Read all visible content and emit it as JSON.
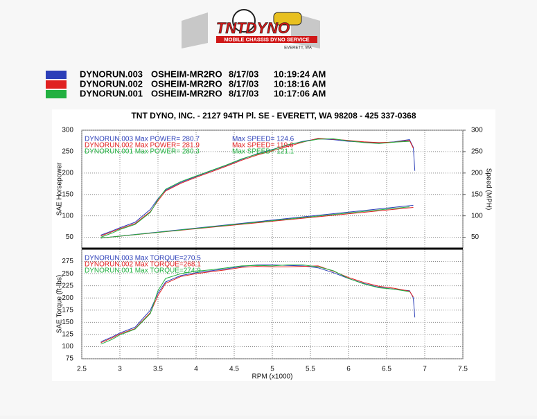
{
  "header": {
    "logo": {
      "brand": "TNTDYNO",
      "tagline": "MOBILE CHASSIS DYNO SERVICE",
      "place": "EVERETT, WA"
    },
    "legend": [
      {
        "run": "DYNORUN.003",
        "vehicle": "OSHEIM-MR2RO",
        "date": "8/17/03",
        "time": "10:19:24 AM",
        "color": "#2c3fb8"
      },
      {
        "run": "DYNORUN.002",
        "vehicle": "OSHEIM-MR2RO",
        "date": "8/17/03",
        "time": "10:18:16 AM",
        "color": "#e02020"
      },
      {
        "run": "DYNORUN.001",
        "vehicle": "OSHEIM-MR2RO",
        "date": "8/17/03",
        "time": "10:17:06 AM",
        "color": "#22b040"
      }
    ],
    "title": "TNT DYNO, INC. - 2127 94TH Pl. SE - EVERETT, WA 98208 - 425 337-0368"
  },
  "chart_data": [
    {
      "type": "line",
      "ylabel": "SAE Horsepower",
      "y2label": "Speed (MPH)",
      "xlim": [
        2.5,
        7.5
      ],
      "ylim": [
        25,
        300
      ],
      "yticks": [
        50,
        100,
        150,
        200,
        250,
        300
      ],
      "y2lim": [
        25,
        300
      ],
      "y2ticks": [
        50,
        100,
        150,
        200,
        250,
        300
      ],
      "grid": true,
      "series": [
        {
          "label": "DYNORUN.003 Max POWER= 280.7",
          "color": "#2c3fb8",
          "x": [
            2.75,
            2.9,
            3.0,
            3.2,
            3.4,
            3.5,
            3.6,
            3.8,
            4.0,
            4.2,
            4.4,
            4.6,
            4.8,
            5.0,
            5.2,
            5.4,
            5.6,
            5.8,
            6.0,
            6.2,
            6.4,
            6.6,
            6.8,
            6.85,
            6.87
          ],
          "values": [
            55,
            65,
            72,
            85,
            115,
            140,
            160,
            178,
            192,
            205,
            218,
            232,
            245,
            255,
            265,
            274,
            280,
            278,
            274,
            272,
            270,
            273,
            278,
            260,
            205
          ]
        },
        {
          "label": "DYNORUN.002 Max POWER= 281.9",
          "color": "#e02020",
          "x": [
            2.75,
            2.9,
            3.0,
            3.2,
            3.4,
            3.5,
            3.6,
            3.8,
            4.0,
            4.2,
            4.4,
            4.6,
            4.8,
            5.0,
            5.2,
            5.4,
            5.6,
            5.8,
            6.0,
            6.2,
            6.4,
            6.6,
            6.8,
            6.85
          ],
          "values": [
            53,
            63,
            70,
            82,
            110,
            135,
            158,
            176,
            190,
            203,
            216,
            230,
            242,
            252,
            262,
            272,
            281,
            279,
            276,
            273,
            271,
            272,
            276,
            258
          ]
        },
        {
          "label": "DYNORUN.001 Max POWER= 280.3",
          "color": "#22b040",
          "x": [
            2.75,
            2.9,
            3.0,
            3.2,
            3.4,
            3.5,
            3.6,
            3.8,
            4.0,
            4.2,
            4.4,
            4.6,
            4.8,
            5.0,
            5.2,
            5.4,
            5.6,
            5.8,
            6.0,
            6.2,
            6.4,
            6.6,
            6.8
          ],
          "values": [
            50,
            60,
            68,
            80,
            108,
            138,
            162,
            180,
            193,
            206,
            219,
            233,
            244,
            254,
            266,
            273,
            279,
            280,
            275,
            271,
            269,
            272,
            274
          ]
        },
        {
          "label": "Max SPEED= 124.6",
          "color": "#2c3fb8",
          "axis": "y2",
          "x": [
            2.75,
            6.85
          ],
          "values": [
            48,
            124.6
          ]
        },
        {
          "label": "Max SPEED= 119.6",
          "color": "#e02020",
          "axis": "y2",
          "x": [
            2.75,
            6.85
          ],
          "values": [
            48,
            119.6
          ]
        },
        {
          "label": "Max SPEED= 121.1",
          "color": "#22b040",
          "axis": "y2",
          "x": [
            2.75,
            6.8
          ],
          "values": [
            48,
            121.1
          ]
        }
      ]
    },
    {
      "type": "line",
      "ylabel": "SAE Torque (ft-lbs)",
      "xlabel": "RPM (x1000)",
      "xlim": [
        2.5,
        7.5
      ],
      "xticks": [
        2.5,
        3.0,
        3.5,
        4.0,
        4.5,
        5.0,
        5.5,
        6.0,
        6.5,
        7.0,
        7.5
      ],
      "ylim": [
        75,
        300
      ],
      "yticks": [
        75,
        100,
        125,
        150,
        175,
        200,
        225,
        250,
        275
      ],
      "grid": true,
      "series": [
        {
          "label": "DYNORUN.003 Max TORQUE=270.5",
          "color": "#2c3fb8",
          "x": [
            2.75,
            2.9,
            3.0,
            3.2,
            3.4,
            3.5,
            3.6,
            3.8,
            4.0,
            4.2,
            4.4,
            4.6,
            4.8,
            5.0,
            5.2,
            5.4,
            5.6,
            5.8,
            6.0,
            6.2,
            6.4,
            6.6,
            6.8,
            6.85,
            6.87
          ],
          "values": [
            110,
            120,
            128,
            140,
            175,
            210,
            233,
            246,
            252,
            256,
            260,
            265,
            268,
            268,
            267,
            266,
            262,
            252,
            240,
            230,
            222,
            218,
            215,
            200,
            160
          ]
        },
        {
          "label": "DYNORUN.002 Max TORQUE=268.1",
          "color": "#e02020",
          "x": [
            2.75,
            2.9,
            3.0,
            3.2,
            3.4,
            3.5,
            3.6,
            3.8,
            4.0,
            4.2,
            4.4,
            4.6,
            4.8,
            5.0,
            5.2,
            5.4,
            5.6,
            5.8,
            6.0,
            6.2,
            6.4,
            6.6,
            6.8,
            6.85
          ],
          "values": [
            108,
            118,
            126,
            137,
            170,
            205,
            230,
            244,
            250,
            254,
            258,
            263,
            265,
            264,
            264,
            265,
            266,
            255,
            242,
            232,
            224,
            220,
            214,
            202
          ]
        },
        {
          "label": "DYNORUN.001 Max TORQUE=274.9",
          "color": "#22b040",
          "x": [
            2.75,
            2.9,
            3.0,
            3.2,
            3.4,
            3.5,
            3.6,
            3.8,
            4.0,
            4.2,
            4.4,
            4.6,
            4.8,
            5.0,
            5.2,
            5.4,
            5.6,
            5.8,
            6.0,
            6.2,
            6.4,
            6.6,
            6.8
          ],
          "values": [
            105,
            115,
            124,
            136,
            168,
            215,
            240,
            250,
            255,
            258,
            262,
            266,
            267,
            266,
            268,
            268,
            264,
            256,
            240,
            229,
            221,
            218,
            213
          ]
        }
      ]
    }
  ]
}
